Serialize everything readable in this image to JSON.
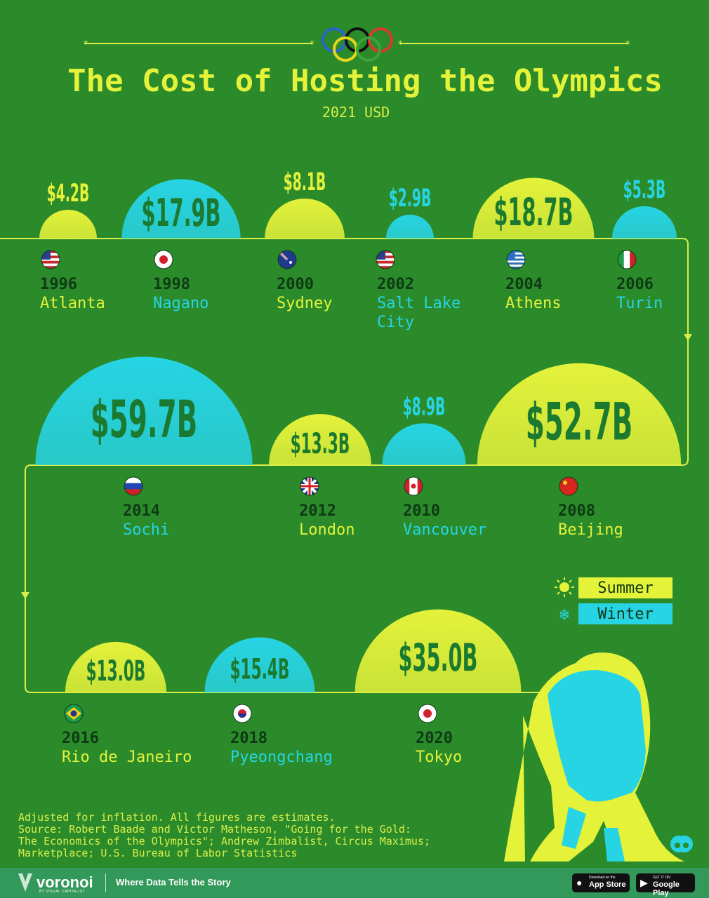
{
  "title": "The Cost of Hosting the Olympics",
  "subtitle": "2021 USD",
  "legend": {
    "summer": "Summer",
    "winter": "Winter"
  },
  "colors": {
    "background": "#2b8b2b",
    "summer": "#e4f23a",
    "winter": "#27d4e4",
    "line": "#d8ee4a",
    "dark": "#0e3a14",
    "value_dark": "#1c7a30"
  },
  "chart_data": {
    "type": "bar",
    "title": "The Cost of Hosting the Olympics",
    "subtitle": "2021 USD",
    "unit": "USD billions",
    "series": [
      {
        "year": "1996",
        "city": "Atlanta",
        "season": "Summer",
        "country": "us",
        "value": 4.2,
        "label": "$4.2B"
      },
      {
        "year": "1998",
        "city": "Nagano",
        "season": "Winter",
        "country": "jp",
        "value": 17.9,
        "label": "$17.9B"
      },
      {
        "year": "2000",
        "city": "Sydney",
        "season": "Summer",
        "country": "au",
        "value": 8.1,
        "label": "$8.1B"
      },
      {
        "year": "2002",
        "city": "Salt Lake City",
        "season": "Winter",
        "country": "us",
        "value": 2.9,
        "label": "$2.9B"
      },
      {
        "year": "2004",
        "city": "Athens",
        "season": "Summer",
        "country": "gr",
        "value": 18.7,
        "label": "$18.7B"
      },
      {
        "year": "2006",
        "city": "Turin",
        "season": "Winter",
        "country": "it",
        "value": 5.3,
        "label": "$5.3B"
      },
      {
        "year": "2008",
        "city": "Beijing",
        "season": "Summer",
        "country": "cn",
        "value": 52.7,
        "label": "$52.7B"
      },
      {
        "year": "2010",
        "city": "Vancouver",
        "season": "Winter",
        "country": "ca",
        "value": 8.9,
        "label": "$8.9B"
      },
      {
        "year": "2012",
        "city": "London",
        "season": "Summer",
        "country": "gb",
        "value": 13.3,
        "label": "$13.3B"
      },
      {
        "year": "2014",
        "city": "Sochi",
        "season": "Winter",
        "country": "ru",
        "value": 59.7,
        "label": "$59.7B"
      },
      {
        "year": "2016",
        "city": "Rio de Janeiro",
        "season": "Summer",
        "country": "br",
        "value": 13.0,
        "label": "$13.0B"
      },
      {
        "year": "2018",
        "city": "Pyeongchang",
        "season": "Winter",
        "country": "kr",
        "value": 15.4,
        "label": "$15.4B"
      },
      {
        "year": "2020",
        "city": "Tokyo",
        "season": "Summer",
        "country": "jp",
        "value": 35.0,
        "label": "$35.0B"
      }
    ]
  },
  "notes": [
    "Adjusted for inflation. All figures are estimates.",
    "Source: Robert Baade and Victor Matheson, \"Going for the Gold:",
    "The Economics of the Olympics\"; Andrew Zimbalist, Circus Maximus;",
    "Marketplace; U.S. Bureau of Labor Statistics"
  ],
  "footer": {
    "brand": "voronoi",
    "brand_sub": "BY VISUAL CAPITALIST",
    "tagline": "Where Data Tells the Story",
    "app_store_small": "Download on the",
    "app_store": "App Store",
    "google_small": "GET IT ON",
    "google": "Google Play"
  }
}
